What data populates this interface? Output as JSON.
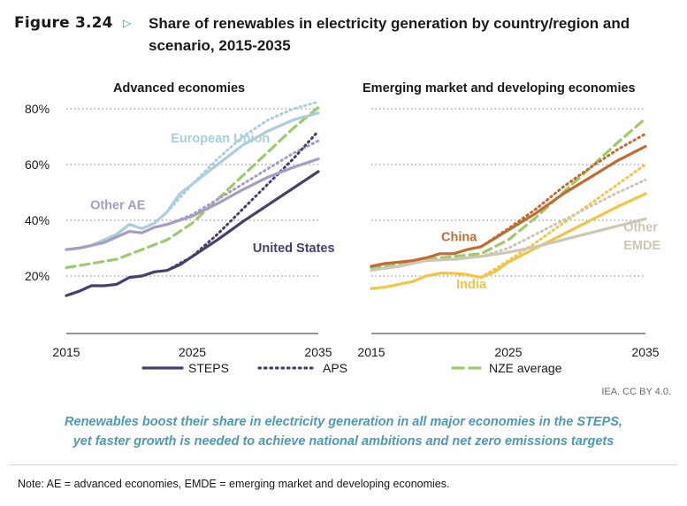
{
  "figure": {
    "number": "Figure 3.24",
    "title": "Share of renewables in electricity generation by country/region and scenario, 2015-2035",
    "credit": "IEA. CC BY 4.0.",
    "takeaway_line1": "Renewables boost their share in electricity generation in all major economies in the STEPS,",
    "takeaway_line2": "yet faster growth is needed to achieve national ambitions and net zero emissions targets",
    "note": "Note: AE = advanced economies, EMDE = emerging market and developing economies."
  },
  "legend": [
    {
      "label": "STEPS",
      "style": "solid"
    },
    {
      "label": "APS",
      "style": "dotted"
    },
    {
      "label": "NZE average",
      "style": "dashed"
    }
  ],
  "colors": {
    "eu": "#a9cfdb",
    "other_ae": "#a79bc8",
    "us": "#4a3e70",
    "china": "#c56a31",
    "india": "#f4c542",
    "other_emde": "#cdc6b4",
    "nze": "#9ccc65",
    "grid": "#9a9a9a",
    "axis": "#555555"
  },
  "chart_data": [
    {
      "type": "line",
      "title": "Advanced economies",
      "xlim": [
        2015,
        2035
      ],
      "ylim": [
        0,
        85
      ],
      "yticks": [
        20,
        40,
        60,
        80
      ],
      "ytick_labels": [
        "20%",
        "40%",
        "60%",
        "80%"
      ],
      "xticks": [
        2015,
        2025,
        2035
      ],
      "xtick_labels": [
        "2015",
        "2025",
        "2035"
      ],
      "grid": true,
      "series": [
        {
          "name": "European Union",
          "scenario": "STEPS",
          "color_key": "eu",
          "label_color_key": "eu",
          "x": [
            2015,
            2016,
            2017,
            2018,
            2019,
            2020,
            2021,
            2022,
            2023,
            2024,
            2025,
            2027,
            2029,
            2031,
            2033,
            2035
          ],
          "y": [
            29.5,
            30,
            31,
            33,
            35,
            38.5,
            37,
            39,
            43,
            49.5,
            53,
            60,
            67,
            72,
            76,
            78.5
          ]
        },
        {
          "name": "European Union",
          "scenario": "APS",
          "color_key": "eu",
          "x": [
            2023,
            2025,
            2027,
            2029,
            2031,
            2033,
            2035
          ],
          "y": [
            43,
            53,
            62,
            70,
            76,
            80,
            82.5
          ]
        },
        {
          "name": "Other AE",
          "scenario": "STEPS",
          "color_key": "other_ae",
          "label_color_key": "other_ae",
          "x": [
            2015,
            2016,
            2017,
            2018,
            2019,
            2020,
            2021,
            2022,
            2023,
            2024,
            2025,
            2027,
            2029,
            2031,
            2033,
            2035
          ],
          "y": [
            29.5,
            30,
            31,
            32,
            34,
            36,
            35.5,
            37.5,
            38.5,
            40,
            41.5,
            46,
            51,
            55.5,
            59,
            62
          ]
        },
        {
          "name": "Other AE",
          "scenario": "APS",
          "color_key": "other_ae",
          "x": [
            2023,
            2025,
            2027,
            2029,
            2031,
            2033,
            2035
          ],
          "y": [
            38.5,
            42,
            47.5,
            53,
            58.5,
            64,
            68.5
          ]
        },
        {
          "name": "United States",
          "scenario": "STEPS",
          "color_key": "us",
          "label_color_key": "us",
          "x": [
            2015,
            2016,
            2017,
            2018,
            2019,
            2020,
            2021,
            2022,
            2023,
            2024,
            2025,
            2027,
            2029,
            2031,
            2033,
            2035
          ],
          "y": [
            13,
            14.5,
            16.5,
            16.5,
            17,
            19.5,
            20,
            21.5,
            22,
            24,
            27,
            33,
            39.5,
            45.5,
            51.5,
            57.5
          ]
        },
        {
          "name": "United States",
          "scenario": "APS",
          "color_key": "us",
          "x": [
            2023,
            2025,
            2027,
            2029,
            2031,
            2033,
            2035
          ],
          "y": [
            22,
            27,
            35,
            44,
            53,
            62,
            72
          ]
        },
        {
          "name": "Advanced economies",
          "scenario": "NZE average",
          "color_key": "nze",
          "x": [
            2015,
            2017,
            2019,
            2021,
            2023,
            2025,
            2027,
            2029,
            2031,
            2033,
            2035
          ],
          "y": [
            23,
            24.5,
            26,
            29.5,
            33,
            39,
            47.5,
            56,
            64.5,
            73,
            80.5
          ]
        }
      ]
    },
    {
      "type": "line",
      "title": "Emerging market and developing economies",
      "xlim": [
        2015,
        2035
      ],
      "ylim": [
        0,
        85
      ],
      "yticks": [
        20,
        40,
        60,
        80
      ],
      "xticks": [
        2015,
        2025,
        2035
      ],
      "xtick_labels": [
        "2015",
        "2025",
        "2035"
      ],
      "grid": true,
      "series": [
        {
          "name": "China",
          "scenario": "STEPS",
          "color_key": "china",
          "label_color_key": "china",
          "x": [
            2015,
            2016,
            2017,
            2018,
            2019,
            2020,
            2021,
            2022,
            2023,
            2024,
            2025,
            2027,
            2029,
            2031,
            2033,
            2035
          ],
          "y": [
            23.5,
            24.5,
            25,
            25.5,
            26.5,
            28,
            28,
            29.5,
            30.5,
            33.5,
            36.5,
            42.5,
            49.5,
            55.5,
            61.5,
            66.5
          ]
        },
        {
          "name": "China",
          "scenario": "APS",
          "color_key": "china",
          "x": [
            2023,
            2025,
            2027,
            2029,
            2031,
            2033,
            2035
          ],
          "y": [
            30.5,
            37,
            44,
            52,
            59,
            65.5,
            71
          ]
        },
        {
          "name": "India",
          "scenario": "STEPS",
          "color_key": "india",
          "label_color_key": "india",
          "x": [
            2015,
            2016,
            2017,
            2018,
            2019,
            2020,
            2021,
            2022,
            2023,
            2024,
            2025,
            2027,
            2029,
            2031,
            2033,
            2035
          ],
          "y": [
            15.5,
            16,
            17,
            18,
            20,
            21,
            21,
            20.5,
            19.5,
            21.5,
            25,
            30,
            35,
            40,
            45,
            49.5
          ]
        },
        {
          "name": "India",
          "scenario": "APS",
          "color_key": "india",
          "x": [
            2023,
            2025,
            2027,
            2029,
            2031,
            2033,
            2035
          ],
          "y": [
            19.5,
            25.5,
            32,
            39,
            46,
            53,
            60
          ]
        },
        {
          "name": "Other EMDE",
          "scenario": "STEPS",
          "color_key": "other_emde",
          "label_color_key": "other_emde",
          "x": [
            2015,
            2017,
            2019,
            2021,
            2023,
            2025,
            2027,
            2029,
            2031,
            2033,
            2035
          ],
          "y": [
            22,
            23.5,
            25.5,
            26,
            27,
            28.5,
            30.5,
            33,
            35.5,
            38,
            40.5
          ]
        },
        {
          "name": "Other EMDE",
          "scenario": "APS",
          "color_key": "other_emde",
          "x": [
            2023,
            2025,
            2027,
            2029,
            2031,
            2033,
            2035
          ],
          "y": [
            27,
            30,
            35,
            40,
            45,
            50,
            54.5
          ]
        },
        {
          "name": "Emerging market and developing economies",
          "scenario": "NZE average",
          "color_key": "nze",
          "x": [
            2015,
            2017,
            2019,
            2021,
            2023,
            2025,
            2027,
            2029,
            2031,
            2033,
            2035
          ],
          "y": [
            23,
            24.5,
            26,
            27,
            28,
            33,
            41,
            50,
            59,
            68,
            76.5
          ]
        }
      ]
    }
  ],
  "series_labels": [
    {
      "panel": 0,
      "text": "European Union",
      "color_key": "eu",
      "x": 2023.3,
      "y": 68
    },
    {
      "panel": 0,
      "text": "Other AE",
      "color_key": "other_ae",
      "x": 2016.9,
      "y": 44
    },
    {
      "panel": 0,
      "text": "United States",
      "color_key": "us",
      "x": 2029.8,
      "y": 28.5
    },
    {
      "panel": 1,
      "text": "China",
      "color_key": "china",
      "x": 2020.1,
      "y": 32.5
    },
    {
      "panel": 1,
      "text": "India",
      "color_key": "india",
      "x": 2021.2,
      "y": 15.5
    },
    {
      "panel": 1,
      "text": "Other",
      "color_key": "other_emde",
      "x": 2033.4,
      "y": 36
    },
    {
      "panel": 1,
      "text": "EMDE",
      "color_key": "other_emde",
      "x": 2033.4,
      "y": 29.5
    }
  ]
}
